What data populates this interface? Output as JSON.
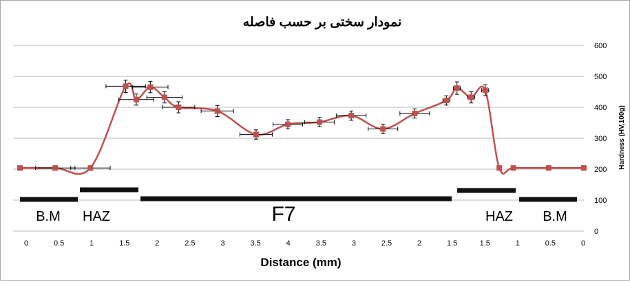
{
  "chart_data": {
    "type": "line",
    "title": "نمودار سختی بر حسب فاصله",
    "xlabel": "Distance (mm)",
    "ylabel": "Hardness (HV,100g)",
    "ylim": [
      0,
      600
    ],
    "yticks": [
      "0",
      "100",
      "200",
      "300",
      "400",
      "500",
      "600"
    ],
    "xticks": [
      "0",
      "0.5",
      "1",
      "1.5",
      "2",
      "2.5",
      "3",
      "3.5",
      "4",
      "3.5",
      "3",
      "2.5",
      "2",
      "1.5",
      "1.5",
      "1",
      "0.5",
      "0"
    ],
    "grid": true,
    "series": [
      {
        "color": "#c0504d",
        "x": [
          0,
          0.5,
          1,
          1.5,
          1.65,
          1.85,
          2.05,
          2.25,
          2.8,
          3.35,
          3.8,
          4.25,
          4.7,
          5.15,
          5.6,
          6.05,
          6.2,
          6.4,
          6.6,
          6.8,
          7.0,
          7.5,
          8.0
        ],
        "values": [
          204,
          204,
          204,
          468,
          425,
          465,
          432,
          400,
          388,
          312,
          345,
          352,
          373,
          330,
          380,
          422,
          462,
          432,
          455,
          204,
          204,
          204,
          204
        ],
        "xerr": [
          0,
          0.28,
          0.28,
          0.28,
          0.25,
          0.25,
          0.25,
          0.23,
          0.23,
          0.23,
          0.21,
          0.21,
          0.21,
          0.21,
          0.21,
          0.05,
          0.05,
          0.05,
          0.05,
          0,
          0,
          0,
          0
        ],
        "yerr": [
          0,
          0,
          0,
          20,
          18,
          18,
          18,
          18,
          18,
          15,
          15,
          15,
          15,
          15,
          15,
          15,
          20,
          18,
          18,
          0,
          0,
          0,
          0
        ]
      }
    ],
    "zones": [
      {
        "label": "B.M"
      },
      {
        "label": "HAZ"
      },
      {
        "label": "F7"
      },
      {
        "label": "HAZ"
      },
      {
        "label": "B.M"
      }
    ]
  }
}
